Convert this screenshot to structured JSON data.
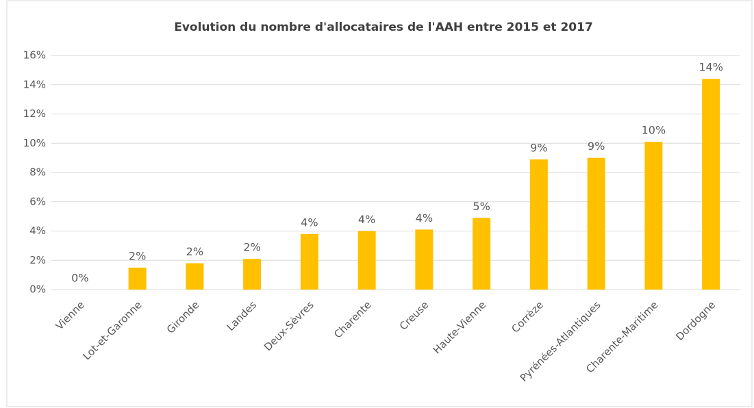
{
  "chart_data": {
    "type": "bar",
    "title": "Evolution du nombre d'allocataires de l'AAH entre 2015 et 2017",
    "categories": [
      "Vienne",
      "Lot-et-Garonne",
      "Gironde",
      "Landes",
      "Deux-Sèvres",
      "Charente",
      "Creuse",
      "Haute-Vienne",
      "Corrèze",
      "Pyrénées-Atlantiques",
      "Charente-Maritime",
      "Dordogne"
    ],
    "values": [
      0,
      1.5,
      1.8,
      2.1,
      3.8,
      4.0,
      4.1,
      4.9,
      8.9,
      9.0,
      10.1,
      14.4
    ],
    "value_labels": [
      "0%",
      "2%",
      "2%",
      "2%",
      "4%",
      "4%",
      "4%",
      "5%",
      "9%",
      "9%",
      "10%",
      "14%"
    ],
    "color": "#ffc000",
    "ylim": [
      0,
      16
    ],
    "yticks": [
      {
        "value": 0,
        "label": "0%"
      },
      {
        "value": 2,
        "label": "2%"
      },
      {
        "value": 4,
        "label": "4%"
      },
      {
        "value": 6,
        "label": "6%"
      },
      {
        "value": 8,
        "label": "8%"
      },
      {
        "value": 10,
        "label": "10%"
      },
      {
        "value": 12,
        "label": "12%"
      },
      {
        "value": 14,
        "label": "14%"
      },
      {
        "value": 16,
        "label": "16%"
      }
    ],
    "grid": true
  }
}
